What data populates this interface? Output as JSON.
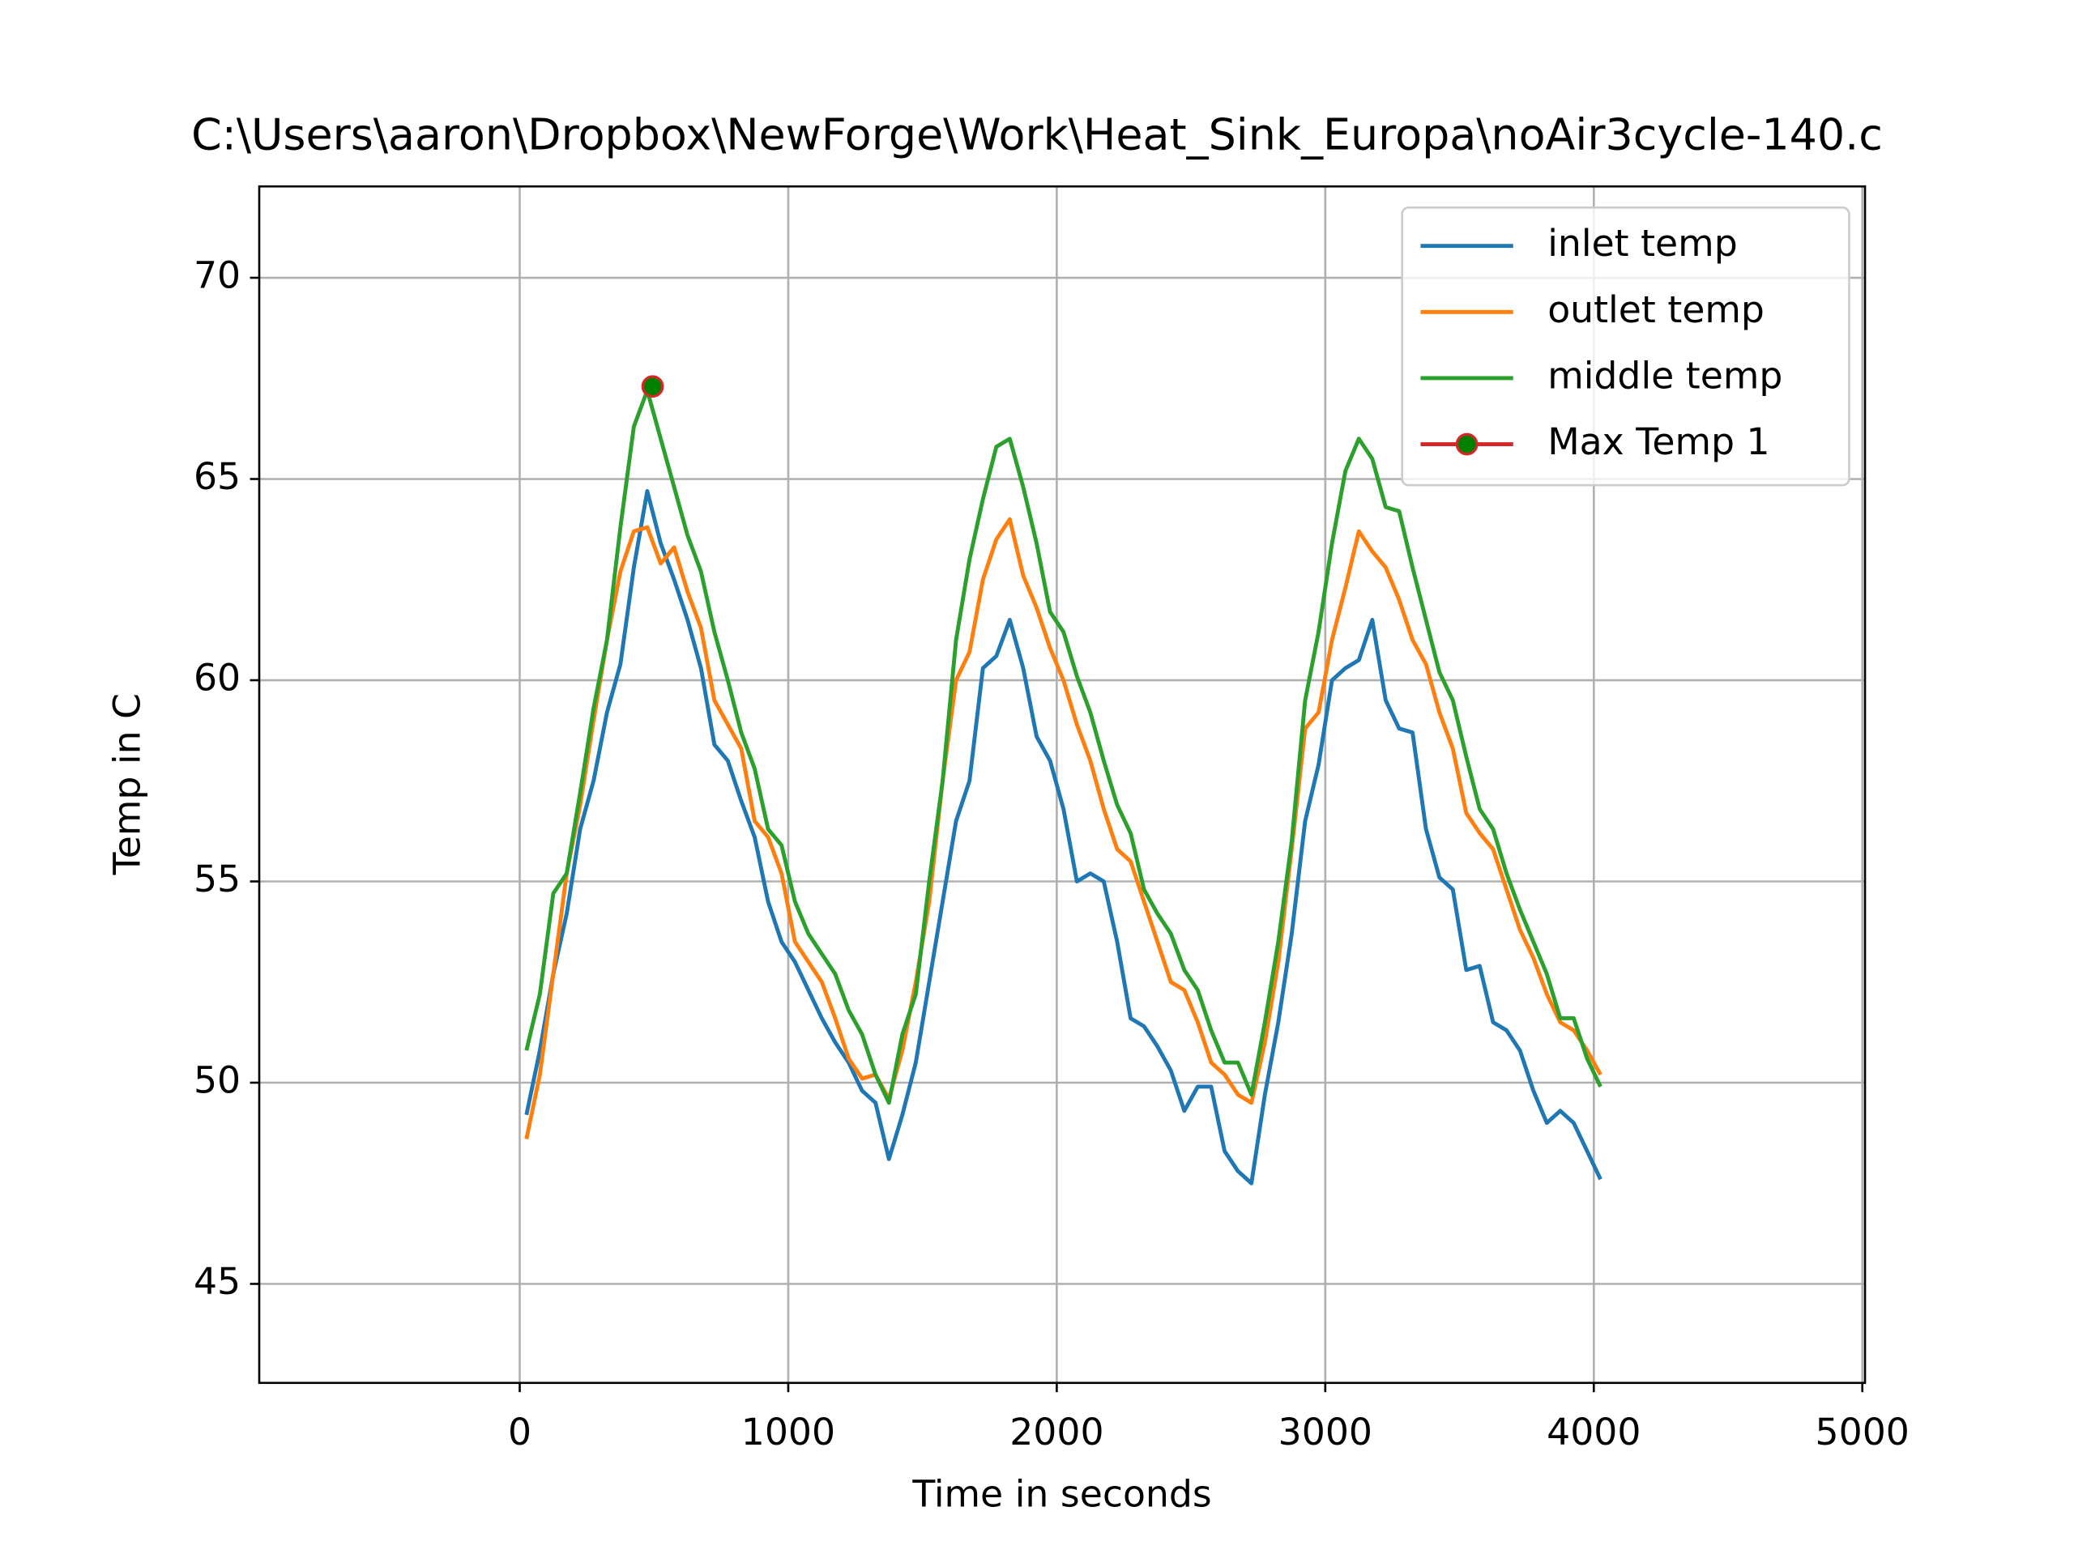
{
  "chart_data": {
    "type": "line",
    "title": "C:\\Users\\aaron\\Dropbox\\NewForge\\Work\\Heat_Sink_Europa\\noAir3cycle-140.c",
    "xlabel": "Time in seconds",
    "ylabel": "Temp in C",
    "xlim": [
      -970,
      5010
    ],
    "ylim": [
      42.54,
      72.27
    ],
    "xticks": [
      0,
      1000,
      2000,
      3000,
      4000,
      5000
    ],
    "yticks": [
      45,
      50,
      55,
      60,
      65,
      70
    ],
    "grid": true,
    "legend": "upper right",
    "x": [
      25,
      75,
      125,
      175,
      225,
      275,
      325,
      375,
      425,
      475,
      525,
      575,
      625,
      675,
      725,
      775,
      825,
      875,
      925,
      975,
      1025,
      1075,
      1125,
      1175,
      1225,
      1275,
      1325,
      1375,
      1425,
      1475,
      1525,
      1575,
      1625,
      1675,
      1725,
      1775,
      1825,
      1875,
      1925,
      1975,
      2025,
      2075,
      2125,
      2175,
      2225,
      2275,
      2325,
      2375,
      2425,
      2475,
      2525,
      2575,
      2625,
      2675,
      2725,
      2775,
      2825,
      2875,
      2925,
      2975,
      3025,
      3075,
      3125,
      3175,
      3225,
      3275,
      3325,
      3375,
      3425,
      3475,
      3525,
      3575,
      3625,
      3675,
      3725,
      3775,
      3825,
      3875,
      3925,
      3975,
      4025
    ],
    "series": [
      {
        "name": "inlet temp",
        "color": "#1f77b4",
        "values": [
          49.2,
          50.8,
          52.7,
          54.2,
          56.3,
          57.5,
          59.2,
          60.4,
          62.8,
          64.7,
          63.4,
          62.5,
          61.5,
          60.3,
          58.4,
          58,
          57,
          56.1,
          54.5,
          53.5,
          53,
          52.3,
          51.6,
          51,
          50.5,
          49.8,
          49.5,
          48.1,
          49.2,
          50.5,
          52.5,
          54.5,
          56.5,
          57.5,
          60.3,
          60.6,
          61.5,
          60.3,
          58.6,
          58,
          56.8,
          55,
          55.2,
          55,
          53.5,
          51.6,
          51.4,
          50.9,
          50.3,
          49.3,
          49.9,
          49.9,
          48.3,
          47.8,
          47.5,
          49.7,
          51.5,
          53.7,
          56.5,
          57.9,
          60,
          60.3,
          60.5,
          61.5,
          59.5,
          58.8,
          58.7,
          56.3,
          55.1,
          54.8,
          52.8,
          52.9,
          51.5,
          51.3,
          50.8,
          49.8,
          49,
          49.3,
          49,
          48.3,
          47.6
        ]
      },
      {
        "name": "outlet temp",
        "color": "#ff7f0e",
        "values": [
          48.6,
          50.2,
          52.7,
          55.2,
          56.9,
          59,
          61,
          62.7,
          63.7,
          63.8,
          62.9,
          63.3,
          62.2,
          61.3,
          59.5,
          58.9,
          58.3,
          56.5,
          56.1,
          55.2,
          53.5,
          53,
          52.5,
          51.6,
          50.6,
          50.1,
          50.2,
          49.6,
          50.8,
          52.5,
          54.5,
          57.5,
          60,
          60.7,
          62.5,
          63.5,
          64,
          62.6,
          61.8,
          60.8,
          60,
          58.9,
          58,
          56.8,
          55.8,
          55.5,
          54.5,
          53.5,
          52.5,
          52.3,
          51.5,
          50.5,
          50.2,
          49.7,
          49.5,
          51,
          53,
          55.8,
          58.8,
          59.2,
          61,
          62.3,
          63.7,
          63.2,
          62.8,
          62,
          61,
          60.4,
          59.2,
          58.3,
          56.7,
          56.2,
          55.8,
          54.8,
          53.8,
          53.1,
          52.2,
          51.5,
          51.3,
          50.8,
          50.2
        ]
      },
      {
        "name": "middle temp",
        "color": "#2ca02c",
        "values": [
          50.8,
          52.2,
          54.7,
          55.2,
          57.2,
          59.3,
          61,
          63.8,
          66.3,
          67.2,
          66,
          64.8,
          63.6,
          62.7,
          61.2,
          60,
          58.7,
          57.8,
          56.3,
          55.9,
          54.5,
          53.7,
          53.2,
          52.7,
          51.8,
          51.2,
          50.2,
          49.5,
          51.2,
          52.2,
          55,
          57.5,
          61,
          63,
          64.5,
          65.8,
          66,
          64.8,
          63.4,
          61.7,
          61.2,
          60.1,
          59.2,
          58,
          56.9,
          56.2,
          54.8,
          54.2,
          53.7,
          52.8,
          52.3,
          51.3,
          50.5,
          50.5,
          49.7,
          51.5,
          53.5,
          56,
          59.5,
          61.2,
          63.4,
          65.2,
          66,
          65.5,
          64.3,
          64.2,
          62.8,
          61.5,
          60.2,
          59.5,
          58.1,
          56.8,
          56.3,
          55.2,
          54.3,
          53.5,
          52.7,
          51.6,
          51.6,
          50.6,
          49.9
        ]
      },
      {
        "name": "Max Temp 1",
        "color": "#d62728",
        "marker_color": "#008000",
        "x": [
          495
        ],
        "values": [
          67.3
        ]
      }
    ]
  }
}
